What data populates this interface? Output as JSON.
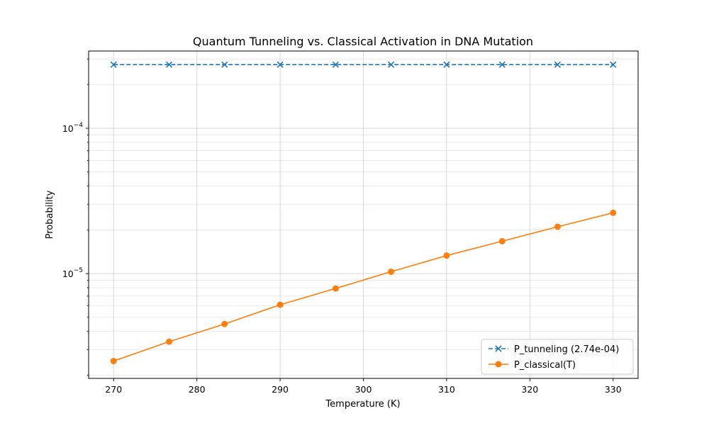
{
  "chart_data": {
    "type": "line",
    "title": "Quantum Tunneling vs. Classical Activation in DNA Mutation",
    "xlabel": "Temperature (K)",
    "ylabel": "Probability",
    "yscale": "log",
    "xlim": [
      267,
      333
    ],
    "ylim": [
      1.9e-06,
      0.00034
    ],
    "grid": true,
    "legend_position": "lower-right",
    "x": [
      270,
      276.67,
      283.33,
      290,
      296.67,
      303.33,
      310,
      316.67,
      323.33,
      330
    ],
    "x_ticks": [
      270,
      280,
      290,
      300,
      310,
      320,
      330
    ],
    "x_tick_labels": [
      "270",
      "280",
      "290",
      "300",
      "310",
      "320",
      "330"
    ],
    "y_ticks": [
      1e-05,
      0.0001
    ],
    "y_tick_labels": [
      {
        "base": "10",
        "exp": "−5"
      },
      {
        "base": "10",
        "exp": "−4"
      }
    ],
    "series": [
      {
        "name": "P_tunneling (2.74e-04)",
        "color": "#1f77b4",
        "line_style": "dashed",
        "marker": "x",
        "values": [
          0.000274,
          0.000274,
          0.000274,
          0.000274,
          0.000274,
          0.000274,
          0.000274,
          0.000274,
          0.000274,
          0.000274
        ]
      },
      {
        "name": "P_classical(T)",
        "color": "#ff7f0e",
        "line_style": "solid",
        "marker": "circle",
        "values": [
          2.5e-06,
          3.4e-06,
          4.5e-06,
          6.1e-06,
          7.9e-06,
          1.03e-05,
          1.33e-05,
          1.67e-05,
          2.1e-05,
          2.62e-05
        ]
      }
    ]
  }
}
